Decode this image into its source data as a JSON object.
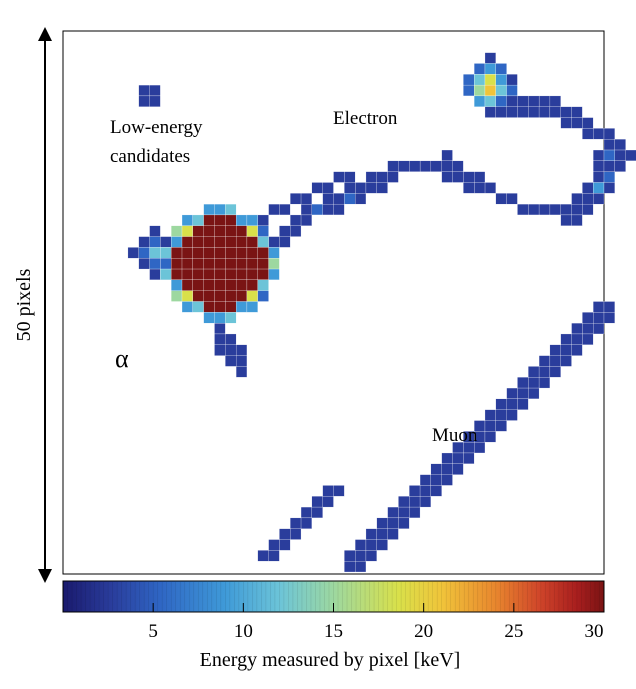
{
  "labels": {
    "low_energy": [
      "Low-energy",
      "candidates"
    ],
    "electron": "Electron",
    "muon": "Muon",
    "alpha": "α",
    "scale": "50 pixels",
    "colorbar_title": "Energy measured by pixel [keV]"
  },
  "colorbar": {
    "min": 0,
    "max": 30,
    "ticks": [
      "5",
      "10",
      "15",
      "20",
      "25",
      "30"
    ],
    "tick_values": [
      5,
      10,
      15,
      20,
      25,
      30
    ],
    "colormap": "jet",
    "stops": [
      "#1a1a6e",
      "#2a3d9c",
      "#2f66c4",
      "#3f9ad8",
      "#6cc4d8",
      "#9dd8a0",
      "#d9e04a",
      "#f0c43a",
      "#e8862e",
      "#d0462a",
      "#a81e1e",
      "#7a1414"
    ]
  },
  "tracks": [
    {
      "name": "Low-energy candidates",
      "cells": [
        [
          7,
          5,
          3
        ],
        [
          8,
          5,
          3
        ],
        [
          7,
          6,
          3
        ],
        [
          8,
          6,
          4
        ]
      ]
    },
    {
      "name": "Low-energy candidates",
      "cells": [
        [
          8,
          18,
          3
        ],
        [
          7,
          19,
          3
        ],
        [
          8,
          19,
          5
        ],
        [
          9,
          19,
          4
        ],
        [
          6,
          20,
          3
        ],
        [
          7,
          20,
          6
        ],
        [
          8,
          20,
          10
        ],
        [
          9,
          20,
          5
        ],
        [
          10,
          20,
          3
        ],
        [
          7,
          21,
          4
        ],
        [
          8,
          21,
          6
        ],
        [
          9,
          21,
          4
        ],
        [
          8,
          22,
          3
        ],
        [
          9,
          22,
          3
        ]
      ]
    },
    {
      "name": "Electron",
      "cells": [
        [
          39,
          2,
          3
        ],
        [
          38,
          3,
          6
        ],
        [
          39,
          3,
          7
        ],
        [
          40,
          3,
          5
        ],
        [
          37,
          4,
          5
        ],
        [
          38,
          4,
          12
        ],
        [
          39,
          4,
          16
        ],
        [
          40,
          4,
          9
        ],
        [
          41,
          4,
          4
        ],
        [
          37,
          5,
          6
        ],
        [
          38,
          5,
          14
        ],
        [
          39,
          5,
          19
        ],
        [
          40,
          5,
          10
        ],
        [
          41,
          5,
          5
        ],
        [
          38,
          6,
          8
        ],
        [
          39,
          6,
          12
        ],
        [
          40,
          6,
          6
        ],
        [
          39,
          7,
          4
        ],
        [
          40,
          7,
          3
        ],
        [
          41,
          7,
          3
        ],
        [
          42,
          7,
          3
        ],
        [
          43,
          7,
          3
        ],
        [
          44,
          7,
          3
        ],
        [
          45,
          7,
          3
        ],
        [
          46,
          8,
          3
        ],
        [
          47,
          8,
          3
        ],
        [
          48,
          8,
          4
        ],
        [
          48,
          9,
          3
        ],
        [
          49,
          9,
          3
        ],
        [
          50,
          9,
          3
        ],
        [
          50,
          10,
          3
        ],
        [
          51,
          10,
          4
        ],
        [
          51,
          11,
          3
        ],
        [
          52,
          11,
          3
        ],
        [
          49,
          11,
          3
        ],
        [
          50,
          11,
          5
        ],
        [
          49,
          12,
          4
        ],
        [
          49,
          13,
          3
        ],
        [
          50,
          13,
          6
        ],
        [
          48,
          14,
          3
        ],
        [
          49,
          14,
          7
        ],
        [
          47,
          15,
          3
        ],
        [
          48,
          15,
          4
        ],
        [
          45,
          16,
          3
        ],
        [
          46,
          16,
          3
        ],
        [
          47,
          16,
          3
        ],
        [
          42,
          16,
          3
        ],
        [
          43,
          16,
          3
        ],
        [
          44,
          16,
          3
        ],
        [
          41,
          15,
          3
        ],
        [
          40,
          15,
          3
        ],
        [
          39,
          14,
          3
        ],
        [
          38,
          14,
          3
        ],
        [
          37,
          14,
          3
        ],
        [
          36,
          13,
          3
        ],
        [
          35,
          13,
          3
        ],
        [
          34,
          12,
          3
        ],
        [
          33,
          12,
          3
        ],
        [
          32,
          12,
          3
        ],
        [
          31,
          12,
          3
        ],
        [
          30,
          13,
          3
        ],
        [
          29,
          13,
          3
        ],
        [
          28,
          13,
          3
        ],
        [
          27,
          14,
          4
        ],
        [
          26,
          14,
          4
        ],
        [
          25,
          15,
          4
        ],
        [
          24,
          15,
          4
        ],
        [
          23,
          16,
          5
        ],
        [
          22,
          16,
          4
        ],
        [
          21,
          17,
          4
        ],
        [
          20,
          18,
          4
        ],
        [
          19,
          19,
          3
        ],
        [
          18,
          20,
          3
        ],
        [
          17,
          21,
          3
        ],
        [
          16,
          22,
          3
        ],
        [
          16,
          23,
          3
        ],
        [
          15,
          24,
          3
        ],
        [
          15,
          25,
          4
        ],
        [
          14,
          26,
          4
        ],
        [
          14,
          27,
          3
        ],
        [
          14,
          28,
          3
        ],
        [
          15,
          28,
          3
        ],
        [
          15,
          29,
          3
        ],
        [
          15,
          30,
          3
        ],
        [
          16,
          30,
          3
        ],
        [
          16,
          31,
          3
        ],
        [
          17,
          17,
          3
        ],
        [
          18,
          17,
          4
        ],
        [
          19,
          16,
          4
        ],
        [
          20,
          16,
          3
        ],
        [
          21,
          15,
          4
        ],
        [
          22,
          15,
          3
        ],
        [
          23,
          14,
          3
        ],
        [
          24,
          14,
          3
        ],
        [
          25,
          13,
          3
        ],
        [
          26,
          13,
          3
        ],
        [
          24,
          16,
          3
        ],
        [
          25,
          16,
          3
        ],
        [
          26,
          15,
          5
        ],
        [
          27,
          15,
          3
        ],
        [
          28,
          14,
          4
        ],
        [
          29,
          14,
          3
        ],
        [
          30,
          12,
          3
        ],
        [
          35,
          11,
          3
        ],
        [
          35,
          12,
          3
        ],
        [
          36,
          12,
          3
        ],
        [
          37,
          13,
          3
        ],
        [
          38,
          13,
          3
        ],
        [
          46,
          17,
          3
        ],
        [
          47,
          17,
          3
        ],
        [
          48,
          16,
          3
        ],
        [
          49,
          15,
          3
        ],
        [
          50,
          14,
          3
        ],
        [
          50,
          12,
          3
        ],
        [
          51,
          12,
          3
        ],
        [
          47,
          7,
          3
        ],
        [
          46,
          7,
          3
        ],
        [
          45,
          6,
          3
        ],
        [
          44,
          6,
          3
        ],
        [
          43,
          6,
          3
        ],
        [
          42,
          6,
          3
        ],
        [
          41,
          6,
          3
        ],
        [
          16,
          24,
          3
        ],
        [
          17,
          23,
          3
        ],
        [
          17,
          22,
          3
        ],
        [
          18,
          21,
          4
        ],
        [
          19,
          20,
          3
        ],
        [
          20,
          19,
          3
        ],
        [
          21,
          18,
          3
        ],
        [
          22,
          17,
          3
        ],
        [
          14,
          29,
          3
        ],
        [
          16,
          29,
          3
        ]
      ]
    },
    {
      "name": "Muon",
      "cells": [
        [
          49,
          25,
          3
        ],
        [
          50,
          25,
          3
        ],
        [
          48,
          26,
          3
        ],
        [
          49,
          26,
          3
        ],
        [
          50,
          26,
          3
        ],
        [
          47,
          27,
          3
        ],
        [
          48,
          27,
          4
        ],
        [
          49,
          27,
          3
        ],
        [
          46,
          28,
          3
        ],
        [
          47,
          28,
          3
        ],
        [
          48,
          28,
          3
        ],
        [
          45,
          29,
          3
        ],
        [
          46,
          29,
          3
        ],
        [
          47,
          29,
          3
        ],
        [
          44,
          30,
          3
        ],
        [
          45,
          30,
          3
        ],
        [
          46,
          30,
          3
        ],
        [
          43,
          31,
          3
        ],
        [
          44,
          31,
          3
        ],
        [
          45,
          31,
          3
        ],
        [
          42,
          32,
          3
        ],
        [
          43,
          32,
          3
        ],
        [
          44,
          32,
          3
        ],
        [
          41,
          33,
          3
        ],
        [
          42,
          33,
          3
        ],
        [
          43,
          33,
          3
        ],
        [
          40,
          34,
          3
        ],
        [
          41,
          34,
          3
        ],
        [
          42,
          34,
          3
        ],
        [
          39,
          35,
          3
        ],
        [
          40,
          35,
          3
        ],
        [
          41,
          35,
          3
        ],
        [
          38,
          36,
          3
        ],
        [
          39,
          36,
          3
        ],
        [
          40,
          36,
          3
        ],
        [
          37,
          37,
          3
        ],
        [
          38,
          37,
          3
        ],
        [
          39,
          37,
          3
        ],
        [
          36,
          38,
          3
        ],
        [
          37,
          38,
          3
        ],
        [
          38,
          38,
          3
        ],
        [
          35,
          39,
          3
        ],
        [
          36,
          39,
          3
        ],
        [
          37,
          39,
          3
        ],
        [
          34,
          40,
          3
        ],
        [
          35,
          40,
          3
        ],
        [
          36,
          40,
          3
        ],
        [
          33,
          41,
          3
        ],
        [
          34,
          41,
          3
        ],
        [
          35,
          41,
          3
        ],
        [
          32,
          42,
          3
        ],
        [
          33,
          42,
          3
        ],
        [
          34,
          42,
          3
        ],
        [
          31,
          43,
          3
        ],
        [
          32,
          43,
          3
        ],
        [
          33,
          43,
          3
        ],
        [
          30,
          44,
          3
        ],
        [
          31,
          44,
          3
        ],
        [
          32,
          44,
          3
        ],
        [
          29,
          45,
          3
        ],
        [
          30,
          45,
          3
        ],
        [
          31,
          45,
          3
        ],
        [
          28,
          46,
          3
        ],
        [
          29,
          46,
          3
        ],
        [
          30,
          46,
          3
        ],
        [
          27,
          47,
          3
        ],
        [
          28,
          47,
          3
        ],
        [
          29,
          47,
          3
        ],
        [
          26,
          48,
          3
        ],
        [
          27,
          48,
          3
        ],
        [
          28,
          48,
          3
        ],
        [
          26,
          49,
          3
        ],
        [
          27,
          49,
          3
        ],
        [
          24,
          42,
          3
        ],
        [
          25,
          42,
          4
        ],
        [
          23,
          43,
          3
        ],
        [
          24,
          43,
          4
        ],
        [
          22,
          44,
          3
        ],
        [
          23,
          44,
          3
        ],
        [
          21,
          45,
          3
        ],
        [
          22,
          45,
          3
        ],
        [
          20,
          46,
          3
        ],
        [
          21,
          46,
          3
        ],
        [
          19,
          47,
          3
        ],
        [
          20,
          47,
          3
        ],
        [
          18,
          48,
          3
        ],
        [
          19,
          48,
          3
        ]
      ]
    },
    {
      "name": "α",
      "cells": []
    }
  ],
  "alpha_blob": {
    "center_col": 14.5,
    "center_row": 21.5,
    "core_energy": 29
  }
}
